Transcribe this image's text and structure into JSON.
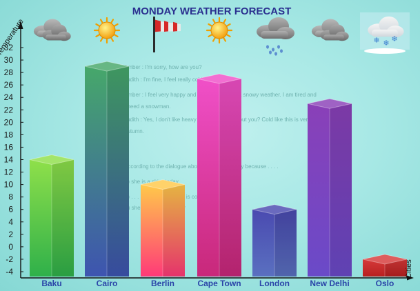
{
  "chart_data": {
    "type": "bar",
    "title": "MONDAY WEATHER FORECAST",
    "xlabel": "Cities",
    "ylabel": "Temperature",
    "categories": [
      "Baku",
      "Cairo",
      "Berlin",
      "Cape Town",
      "London",
      "New Delhi",
      "Oslo"
    ],
    "values": [
      14,
      29,
      10,
      27,
      6,
      23,
      -2
    ],
    "ylim": [
      -4,
      32
    ],
    "yticks": [
      "32",
      "30",
      "28",
      "26",
      "24",
      "22",
      "20",
      "18",
      "16",
      "14",
      "12",
      "10",
      "8",
      "6",
      "4",
      "2",
      "0",
      "-2",
      "-4"
    ],
    "grid": false,
    "weather_icons": [
      "cloudy-icon",
      "sunny-icon",
      "windsock-icon",
      "sunny-icon",
      "rain-cloud-icon",
      "cloudy-icon",
      "snow-cloud-icon"
    ],
    "bar_colors": [
      {
        "top": "#8fe04a",
        "bottom": "#2fb04a"
      },
      {
        "top": "#46a86a",
        "bottom": "#3e54b0"
      },
      {
        "top": "#ffc94a",
        "bottom": "#ff3a78"
      },
      {
        "top": "#f050c8",
        "bottom": "#c8287a"
      },
      {
        "top": "#4a4ab0",
        "bottom": "#5a70c0"
      },
      {
        "top": "#8a40b8",
        "bottom": "#6a4ac8"
      },
      {
        "top": "#d63a3a",
        "bottom": "#b82020"
      }
    ]
  },
  "background_text": [
    "Amber : I'm sorry, how are you?",
    "Judith : I'm fine, I feel really cold today.",
    "Amber : I feel very happy and my parents take a snowy weather. I am tired and",
    "I need a snowman.",
    "Judith : Yes, I don't like heavy weather. How about you? Cold like this is very",
    "autumn.",
    "According to the dialogue above, Judith is mostly because . . . .",
    "A) she is a skier today",
    "B) . . . . . . . . the weather is cold",
    "C) she doesn't like winter"
  ]
}
